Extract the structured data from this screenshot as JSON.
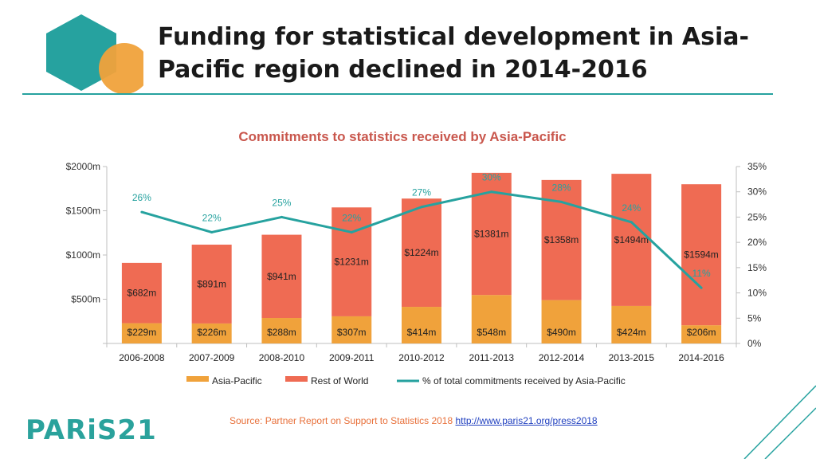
{
  "header": {
    "title": "Funding for statistical development in Asia-Pacific region declined in 2014-2016"
  },
  "colors": {
    "teal": "#26a29f",
    "orange": "#f0a23b",
    "red": "#ef6b53",
    "chart_title": "#c9574d",
    "line_label": "#26a29f"
  },
  "chart_data": {
    "type": "bar",
    "subtype": "stacked bar with line on secondary axis",
    "title": "Commitments to statistics received by Asia-Pacific",
    "categories": [
      "2006-2008",
      "2007-2009",
      "2008-2010",
      "2009-2011",
      "2010-2012",
      "2011-2013",
      "2012-2014",
      "2013-2015",
      "2014-2016"
    ],
    "series": [
      {
        "name": "Asia-Pacific",
        "kind": "bar",
        "values": [
          229,
          226,
          288,
          307,
          414,
          548,
          490,
          424,
          206
        ],
        "labels": [
          "$229m",
          "$226m",
          "$288m",
          "$307m",
          "$414m",
          "$548m",
          "$490m",
          "$424m",
          "$206m"
        ]
      },
      {
        "name": "Rest of World",
        "kind": "bar",
        "values": [
          682,
          891,
          941,
          1231,
          1224,
          1381,
          1358,
          1494,
          1594
        ],
        "labels": [
          "$682m",
          "$891m",
          "$941m",
          "$1231m",
          "$1224m",
          "$1381m",
          "$1358m",
          "$1494m",
          "$1594m"
        ]
      },
      {
        "name": "% of total commitments received by Asia-Pacific",
        "kind": "line",
        "axis": "secondary",
        "values": [
          26,
          22,
          25,
          22,
          27,
          30,
          28,
          24,
          11
        ],
        "labels": [
          "26%",
          "22%",
          "25%",
          "22%",
          "27%",
          "30%",
          "28%",
          "24%",
          "11%"
        ]
      }
    ],
    "y_ticks": [
      "",
      "$500m",
      "$1000m",
      "$1500m",
      "$2000m"
    ],
    "ylim": [
      0,
      2000
    ],
    "y2_ticks": [
      "0%",
      "5%",
      "10%",
      "15%",
      "20%",
      "25%",
      "30%",
      "35%"
    ],
    "y2lim": [
      0,
      35
    ],
    "grid": false,
    "legend_position": "bottom"
  },
  "footer": {
    "brand": "PARiS21",
    "source_text": "Source: Partner Report on Support to Statistics 2018",
    "source_link": "http://www.paris21.org/press2018"
  }
}
